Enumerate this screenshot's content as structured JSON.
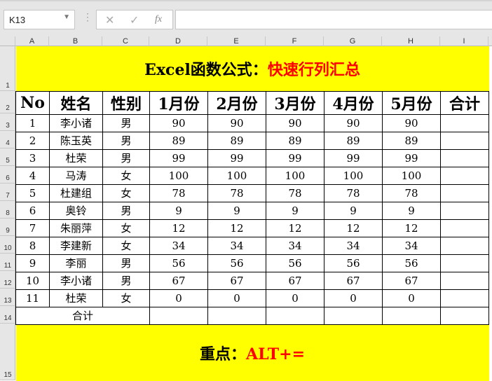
{
  "name_box": "K13",
  "formula_bar": {
    "cancel_icon": "x-icon",
    "enter_icon": "check-icon",
    "fx_label": "fx",
    "value": ""
  },
  "columns": [
    "A",
    "B",
    "C",
    "D",
    "E",
    "F",
    "G",
    "H",
    "I"
  ],
  "rows": [
    "1",
    "2",
    "3",
    "4",
    "5",
    "6",
    "7",
    "8",
    "9",
    "10",
    "11",
    "12",
    "13",
    "14",
    "15"
  ],
  "title": {
    "black": "Excel函数公式：",
    "red": "快速行列汇总"
  },
  "headers": [
    "No",
    "姓名",
    "性别",
    "1月份",
    "2月份",
    "3月份",
    "4月份",
    "5月份",
    "合计"
  ],
  "data": [
    [
      "1",
      "李小诸",
      "男",
      "90",
      "90",
      "90",
      "90",
      "90",
      ""
    ],
    [
      "2",
      "陈玉英",
      "男",
      "89",
      "89",
      "89",
      "89",
      "89",
      ""
    ],
    [
      "3",
      "杜荣",
      "男",
      "99",
      "99",
      "99",
      "99",
      "99",
      ""
    ],
    [
      "4",
      "马涛",
      "女",
      "100",
      "100",
      "100",
      "100",
      "100",
      ""
    ],
    [
      "5",
      "杜建组",
      "女",
      "78",
      "78",
      "78",
      "78",
      "78",
      ""
    ],
    [
      "6",
      "奥铃",
      "男",
      "9",
      "9",
      "9",
      "9",
      "9",
      ""
    ],
    [
      "7",
      "朱丽萍",
      "女",
      "12",
      "12",
      "12",
      "12",
      "12",
      ""
    ],
    [
      "8",
      "李建新",
      "女",
      "34",
      "34",
      "34",
      "34",
      "34",
      ""
    ],
    [
      "9",
      "李丽",
      "男",
      "56",
      "56",
      "56",
      "56",
      "56",
      ""
    ],
    [
      "10",
      "李小诸",
      "男",
      "67",
      "67",
      "67",
      "67",
      "67",
      ""
    ],
    [
      "11",
      "杜荣",
      "女",
      "0",
      "0",
      "0",
      "0",
      "0",
      ""
    ]
  ],
  "total_label": "合计",
  "footer": {
    "black": "重点：",
    "red": "ALT+="
  },
  "colors": {
    "highlight": "#ffff00",
    "accent": "#ff0000"
  }
}
